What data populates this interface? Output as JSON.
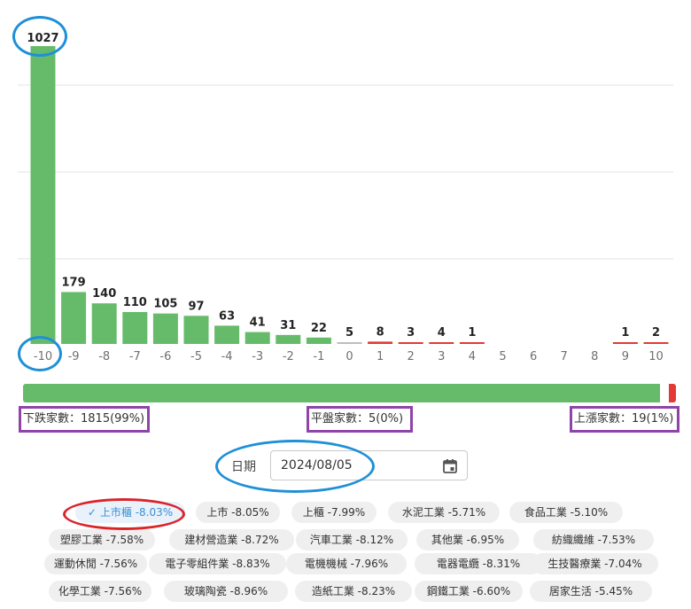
{
  "chart_data": {
    "type": "bar",
    "categories": [
      "-10",
      "-9",
      "-8",
      "-7",
      "-6",
      "-5",
      "-4",
      "-3",
      "-2",
      "-1",
      "0",
      "1",
      "2",
      "3",
      "4",
      "5",
      "6",
      "7",
      "8",
      "9",
      "10"
    ],
    "values": [
      1027,
      179,
      140,
      110,
      105,
      97,
      63,
      41,
      31,
      22,
      5,
      8,
      3,
      4,
      1,
      0,
      0,
      0,
      0,
      1,
      2
    ],
    "value_labels": [
      "1027",
      "179",
      "140",
      "110",
      "105",
      "97",
      "63",
      "41",
      "31",
      "22",
      "5",
      "8",
      "3",
      "4",
      "1",
      "",
      "",
      "",
      "",
      "1",
      "2"
    ],
    "colors": {
      "down": "#66bb6a",
      "flat": "#bdbdbd",
      "up": "#e53935"
    },
    "ylim": [
      0,
      1027
    ],
    "grid": true
  },
  "summary": {
    "down_label": "下跌家數：1815(99%)",
    "flat_label": "平盤家數：5(0%)",
    "up_label": "上漲家數：19(1%)",
    "down_fraction": 0.99,
    "up_fraction": 0.01
  },
  "date_filter": {
    "label": "日期",
    "value": "2024/08/05",
    "icon": "calendar-icon"
  },
  "chips": [
    [
      {
        "label": "上市櫃 -8.03%",
        "selected": true
      },
      {
        "label": "上市 -8.05%"
      },
      {
        "label": "上櫃 -7.99%"
      },
      {
        "label": "水泥工業 -5.71%"
      },
      {
        "label": "食品工業 -5.10%"
      }
    ],
    [
      {
        "label": "塑膠工業 -7.58%"
      },
      {
        "label": "建材營造業 -8.72%"
      },
      {
        "label": "汽車工業 -8.12%"
      },
      {
        "label": "其他業 -6.95%"
      },
      {
        "label": "紡織纖維 -7.53%"
      }
    ],
    [
      {
        "label": "運動休閒 -7.56%"
      },
      {
        "label": "電子零組件業 -8.83%"
      },
      {
        "label": "電機機械 -7.96%"
      },
      {
        "label": "電器電纜 -8.31%"
      },
      {
        "label": "生技醫療業 -7.04%"
      }
    ],
    [
      {
        "label": "化學工業 -7.56%"
      },
      {
        "label": "玻璃陶瓷 -8.96%"
      },
      {
        "label": "造紙工業 -8.23%"
      },
      {
        "label": "鋼鐵工業 -6.60%"
      },
      {
        "label": "居家生活 -5.45%"
      }
    ]
  ]
}
